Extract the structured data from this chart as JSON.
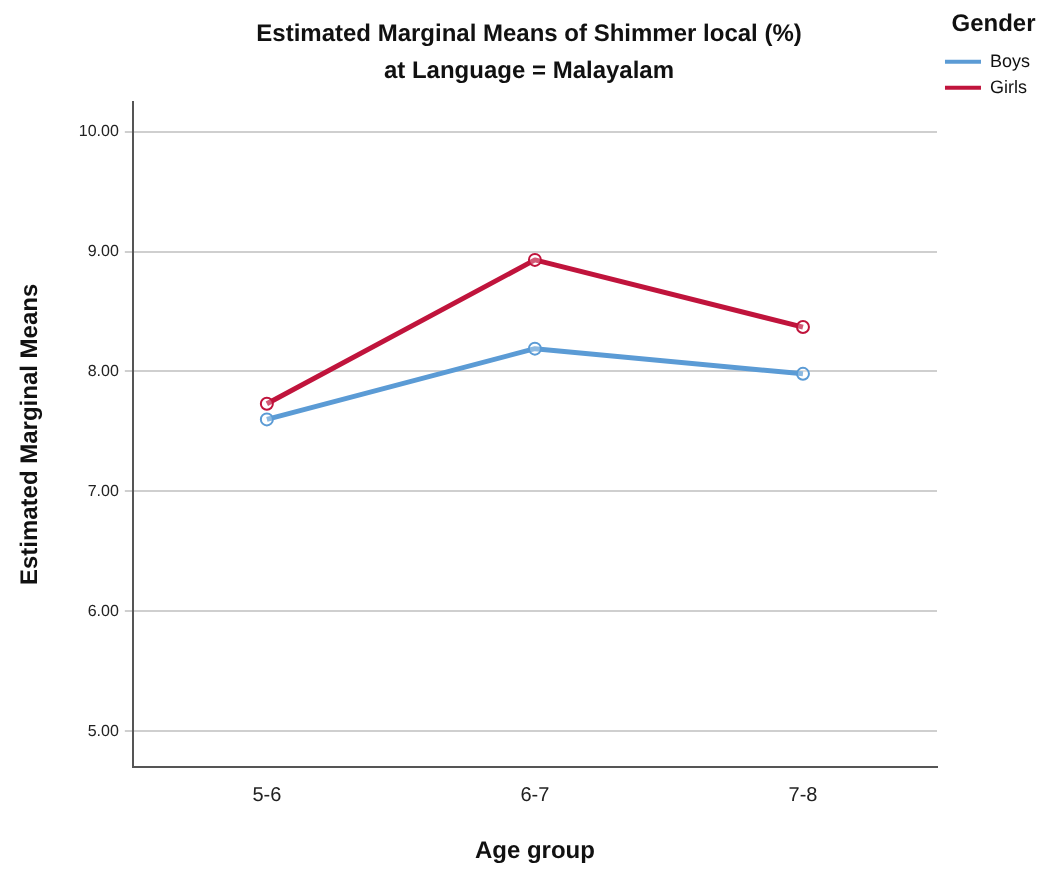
{
  "chart_data": {
    "type": "line",
    "title": "Estimated Marginal Means of Shimmer local (%)",
    "subtitle": "at Language = Malayalam",
    "xlabel": "Age group",
    "ylabel": "Estimated Marginal Means",
    "legend_title": "Gender",
    "categories": [
      "5-6",
      "6-7",
      "7-8"
    ],
    "series": [
      {
        "name": "Boys",
        "color": "#5b9bd5",
        "values": [
          7.6,
          8.19,
          7.98
        ]
      },
      {
        "name": "Girls",
        "color": "#c0143c",
        "values": [
          7.73,
          8.93,
          8.37
        ]
      }
    ],
    "ylim": [
      4.7,
      10.25
    ],
    "yticks": [
      {
        "value": 5,
        "label": "5.00"
      },
      {
        "value": 6,
        "label": "6.00"
      },
      {
        "value": 7,
        "label": "7.00"
      },
      {
        "value": 8,
        "label": "8.00"
      },
      {
        "value": 9,
        "label": "9.00"
      },
      {
        "value": 10,
        "label": "10.00"
      }
    ],
    "grid": "y",
    "legend": "top right",
    "marker": "circle",
    "line_style": "solid"
  }
}
